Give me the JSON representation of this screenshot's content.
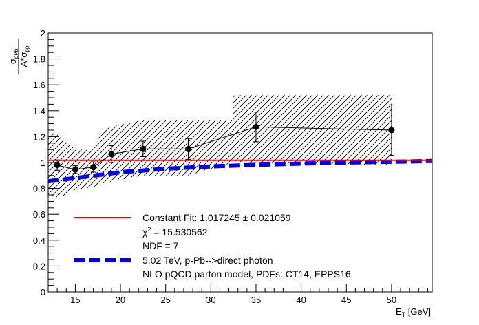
{
  "chart_data": {
    "type": "scatter",
    "title": "",
    "xlabel": "E",
    "xlabel_sub": "T",
    "xlabel_unit": " [GeV]",
    "ylabel_parts": {
      "num_sigma": "σ",
      "num_sub": "pPb",
      "den_a": "A*σ",
      "den_sub": "pp"
    },
    "xlim": [
      12,
      54.5
    ],
    "ylim": [
      0,
      2
    ],
    "x_ticks": [
      "15",
      "20",
      "25",
      "30",
      "35",
      "40",
      "45",
      "50"
    ],
    "x_tick_values": [
      15,
      20,
      25,
      30,
      35,
      40,
      45,
      50
    ],
    "y_ticks": [
      "0",
      "0.2",
      "0.4",
      "0.6",
      "0.8",
      "1",
      "1.2",
      "1.4",
      "1.6",
      "1.8",
      "2"
    ],
    "y_tick_values": [
      0,
      0.2,
      0.4,
      0.6,
      0.8,
      1,
      1.2,
      1.4,
      1.6,
      1.8,
      2
    ],
    "grid": false,
    "legend_position": "bottom-left",
    "colors": {
      "data": "#000000",
      "fit": "#ee0000",
      "theory": "#0000ee"
    },
    "series": [
      {
        "kind": "data",
        "points": [
          {
            "x": 13.0,
            "y": 0.98,
            "err": 0.04
          },
          {
            "x": 15.0,
            "y": 0.945,
            "err": 0.03
          },
          {
            "x": 17.0,
            "y": 0.965,
            "err": 0.04
          },
          {
            "x": 19.0,
            "y": 1.065,
            "err": 0.065
          },
          {
            "x": 22.5,
            "y": 1.105,
            "err": 0.06
          },
          {
            "x": 27.5,
            "y": 1.105,
            "err": 0.08
          },
          {
            "x": 35.0,
            "y": 1.275,
            "err": 0.115
          },
          {
            "x": 50.0,
            "y": 1.25,
            "err": 0.195
          }
        ],
        "syst_band": [
          {
            "x": 12.0,
            "lo": 0.75,
            "hi": 1.22
          },
          {
            "x": 13.0,
            "lo": 0.73,
            "hi": 1.23
          },
          {
            "x": 14.0,
            "lo": 0.75,
            "hi": 1.16
          },
          {
            "x": 15.0,
            "lo": 0.79,
            "hi": 1.1
          },
          {
            "x": 16.0,
            "lo": 0.8,
            "hi": 1.1
          },
          {
            "x": 17.0,
            "lo": 0.81,
            "hi": 1.1
          },
          {
            "x": 18.0,
            "lo": 0.84,
            "hi": 1.26
          },
          {
            "x": 22.5,
            "lo": 0.9,
            "hi": 1.33
          },
          {
            "x": 27.5,
            "lo": 0.9,
            "hi": 1.33
          },
          {
            "x": 32.5,
            "lo": 1.0,
            "hi": 1.33
          },
          {
            "x": 32.5,
            "lo": 1.0,
            "hi": 1.52
          },
          {
            "x": 50.0,
            "lo": 0.98,
            "hi": 1.52
          }
        ]
      },
      {
        "kind": "fit",
        "value": 1.017245,
        "x_range": [
          12,
          54.5
        ]
      },
      {
        "kind": "theory",
        "points": [
          {
            "x": 12.0,
            "y": 0.855
          },
          {
            "x": 15.0,
            "y": 0.88
          },
          {
            "x": 20.0,
            "y": 0.925
          },
          {
            "x": 25.0,
            "y": 0.952
          },
          {
            "x": 30.0,
            "y": 0.97
          },
          {
            "x": 35.0,
            "y": 0.982
          },
          {
            "x": 40.0,
            "y": 0.992
          },
          {
            "x": 45.0,
            "y": 1.0
          },
          {
            "x": 50.0,
            "y": 1.006
          },
          {
            "x": 54.5,
            "y": 1.012
          }
        ]
      }
    ],
    "legend": {
      "fit_label": "Constant Fit: 1.017245 ± 0.021059",
      "chi2_sym": "χ",
      "chi2_sup": "2",
      "chi2_rest": " = 15.530562",
      "ndf": "NDF = 7",
      "theory_label": "5.02 TeV, p-Pb-->direct photon",
      "theory_note": "NLO pQCD parton model, PDFs: CT14, EPPS16"
    }
  }
}
